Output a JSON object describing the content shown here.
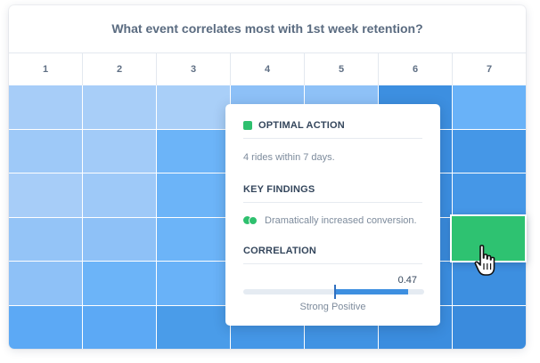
{
  "title": "What event correlates most with 1st week retention?",
  "columns": [
    "1",
    "2",
    "3",
    "4",
    "5",
    "6",
    "7"
  ],
  "heatmap_rows": [
    [
      "#a7cdf8",
      "#a8cef8",
      "#a9cff8",
      "#8dc0f7",
      "#8ec1f7",
      "#3d8fe0",
      "#69b2f8"
    ],
    [
      "#9ec9f8",
      "#a2cbf8",
      "#6cb4f8",
      "#65b0f7",
      "#62aef7",
      "#3b8ddf",
      "#4597e7"
    ],
    [
      "#a7cdf8",
      "#9ec9f8",
      "#6cb4f8",
      "#62aef7",
      "#5fabf6",
      "#3b8ddf",
      "#4597e7"
    ],
    [
      "#94c4f7",
      "#8ec1f7",
      "#6cb4f8",
      "#62aef7",
      "#5fabf6",
      "#3b8ddf",
      "#4597e7"
    ],
    [
      "#8ec1f7",
      "#6cb4f8",
      "#69b2f8",
      "#5fabf6",
      "#5ca9f5",
      "#3b8ddf",
      "#3d8fe0"
    ],
    [
      "#5ca9f5",
      "#5ca9f5",
      "#4a9ce9",
      "#4597e7",
      "#4193e3",
      "#3b8ddf",
      "#3a8bdd"
    ]
  ],
  "popup": {
    "optimal_action_heading": "OPTIMAL ACTION",
    "optimal_action_text": "4 rides within 7 days.",
    "key_findings_heading": "KEY FINDINGS",
    "key_findings_text": "Dramatically increased conversion.",
    "correlation_heading": "CORRELATION",
    "correlation_value_label": "0.47",
    "correlation_value": 0.47,
    "correlation_label": "Strong Positive"
  },
  "colors": {
    "accent_green": "#2ec06e",
    "bar_blue": "#3d8fe0"
  }
}
